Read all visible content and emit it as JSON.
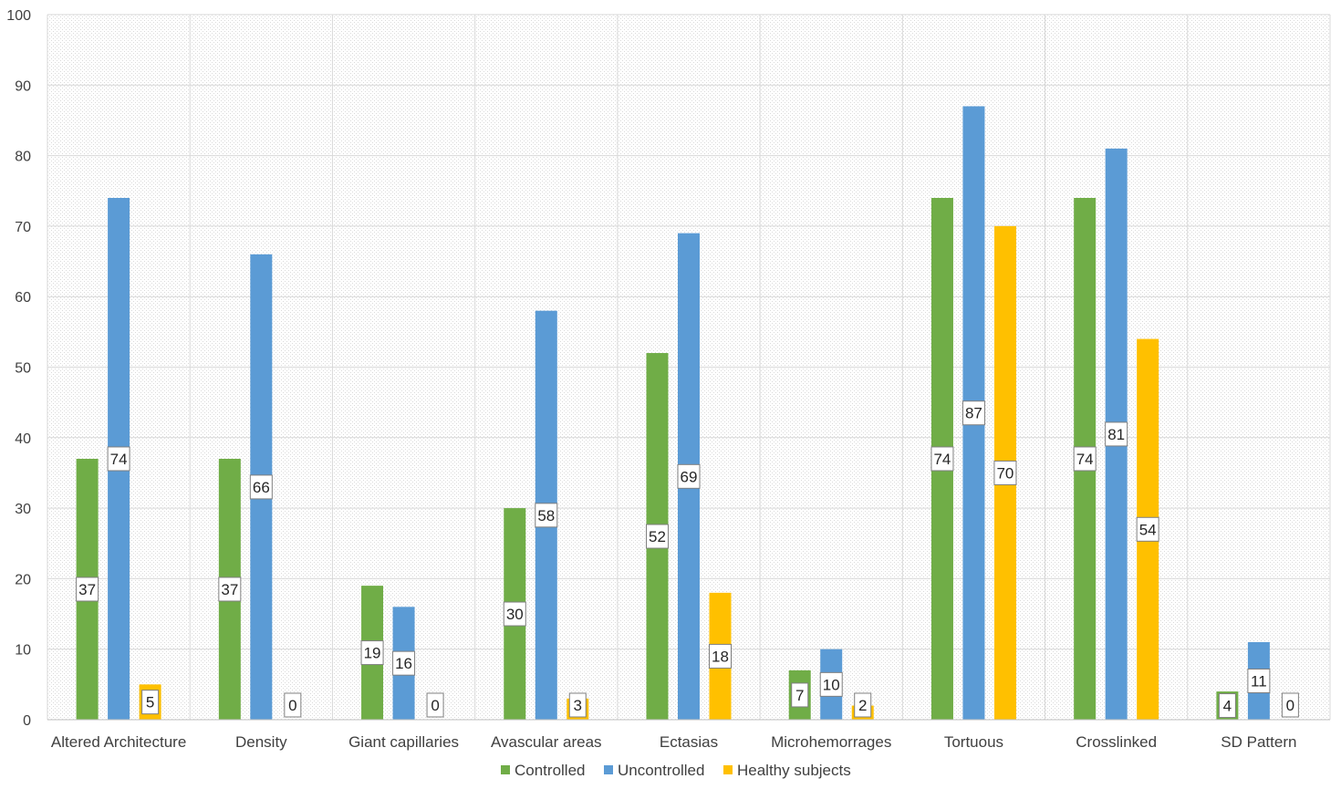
{
  "chart_data": {
    "type": "bar",
    "title": "",
    "xlabel": "",
    "ylabel": "",
    "ylim": [
      0,
      100
    ],
    "yticks": [
      0,
      10,
      20,
      30,
      40,
      50,
      60,
      70,
      80,
      90,
      100
    ],
    "grid": true,
    "legend_position": "bottom",
    "categories": [
      "Altered Architecture",
      "Density",
      "Giant capillaries",
      "Avascular areas",
      "Ectasias",
      "Microhemorrages",
      "Tortuous",
      "Crosslinked",
      "SD Pattern"
    ],
    "series": [
      {
        "name": "Controlled",
        "color": "#70AD47",
        "values": [
          37,
          37,
          19,
          30,
          52,
          7,
          74,
          74,
          4
        ]
      },
      {
        "name": "Uncontrolled",
        "color": "#5B9BD5",
        "values": [
          74,
          66,
          16,
          58,
          69,
          10,
          87,
          81,
          11
        ]
      },
      {
        "name": "Healthy subjects",
        "color": "#FFC000",
        "values": [
          5,
          0,
          0,
          3,
          18,
          2,
          70,
          54,
          0
        ]
      }
    ]
  }
}
